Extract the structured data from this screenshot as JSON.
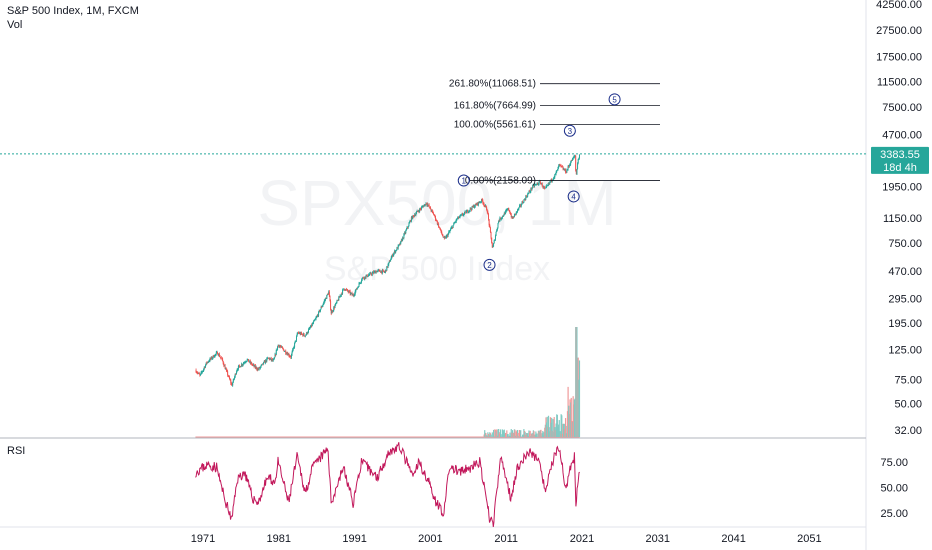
{
  "header": {
    "title": "S&P 500 Index, 1M, FXCM",
    "volume_label": "Vol",
    "rsi_label": "RSI"
  },
  "watermark": {
    "symbol": "SPX500, 1M",
    "name": "S&P 500 Index"
  },
  "price_badge": {
    "value": "3383.55",
    "countdown": "18d 4h",
    "color": "#26a69a"
  },
  "colors": {
    "up": "#26a69a",
    "down": "#ef5350",
    "rsi": "#c2185b",
    "wave": "#1c2f8a"
  },
  "chart_data": {
    "type": "candlestick",
    "title": "S&P 500 Index, 1M, FXCM",
    "y_scale": "log",
    "y_ticks": [
      "42500.00",
      "27500.00",
      "17500.00",
      "11500.00",
      "7500.00",
      "4700.00",
      "3383.55",
      "1950.00",
      "1150.00",
      "750.00",
      "470.00",
      "295.00",
      "195.00",
      "125.00",
      "75.00",
      "50.00",
      "32.00"
    ],
    "x_ticks": [
      "1971",
      "1981",
      "1991",
      "2001",
      "2011",
      "2021",
      "2031",
      "2041",
      "2051"
    ],
    "price_points": [
      [
        1970.0,
        88
      ],
      [
        1970.6,
        80
      ],
      [
        1971.5,
        100
      ],
      [
        1972.9,
        118
      ],
      [
        1973.5,
        105
      ],
      [
        1974.8,
        68
      ],
      [
        1975.5,
        90
      ],
      [
        1976.8,
        105
      ],
      [
        1977.8,
        93
      ],
      [
        1978.3,
        89
      ],
      [
        1979.6,
        108
      ],
      [
        1980.3,
        102
      ],
      [
        1980.9,
        135
      ],
      [
        1982.6,
        110
      ],
      [
        1983.5,
        165
      ],
      [
        1984.5,
        158
      ],
      [
        1985.9,
        210
      ],
      [
        1987.6,
        330
      ],
      [
        1987.9,
        230
      ],
      [
        1989.6,
        350
      ],
      [
        1990.8,
        310
      ],
      [
        1992.0,
        415
      ],
      [
        1994.0,
        470
      ],
      [
        1995.0,
        460
      ],
      [
        1996.0,
        615
      ],
      [
        1997.0,
        740
      ],
      [
        1998.5,
        1140
      ],
      [
        1999.0,
        1230
      ],
      [
        2000.5,
        1480
      ],
      [
        2001.5,
        1200
      ],
      [
        2002.8,
        800
      ],
      [
        2003.2,
        850
      ],
      [
        2004.5,
        1130
      ],
      [
        2006.0,
        1300
      ],
      [
        2007.8,
        1550
      ],
      [
        2008.5,
        1300
      ],
      [
        2009.2,
        680
      ],
      [
        2010.0,
        1100
      ],
      [
        2011.3,
        1340
      ],
      [
        2011.8,
        1130
      ],
      [
        2013.0,
        1450
      ],
      [
        2014.5,
        1950
      ],
      [
        2015.5,
        2100
      ],
      [
        2016.1,
        1850
      ],
      [
        2017.5,
        2400
      ],
      [
        2018.0,
        2800
      ],
      [
        2018.9,
        2500
      ],
      [
        2019.5,
        2950
      ],
      [
        2020.1,
        3300
      ],
      [
        2020.2,
        2250
      ],
      [
        2020.4,
        2900
      ],
      [
        2020.7,
        3383
      ]
    ],
    "fibonacci": [
      {
        "label": "261.80%(11068.51)",
        "value": 11068.51
      },
      {
        "label": "161.80%(7664.99)",
        "value": 7664.99
      },
      {
        "label": "100.00%(5561.61)",
        "value": 5561.61
      },
      {
        "label": "0.00%(2158.09)",
        "value": 2158.09
      }
    ],
    "waves": [
      {
        "label": "1",
        "x": 2005.4,
        "y": 2158
      },
      {
        "label": "2",
        "x": 2008.8,
        "y": 520
      },
      {
        "label": "3",
        "x": 2019.4,
        "y": 5000
      },
      {
        "label": "4",
        "x": 2019.9,
        "y": 1650
      },
      {
        "label": "5",
        "x": 2025.3,
        "y": 8500
      }
    ],
    "rsi": {
      "ticks": [
        "75.00",
        "50.00",
        "25.00"
      ],
      "points": [
        [
          1970.0,
          65
        ],
        [
          1971.5,
          72
        ],
        [
          1972.8,
          70
        ],
        [
          1973.8,
          40
        ],
        [
          1974.8,
          18
        ],
        [
          1975.5,
          58
        ],
        [
          1976.5,
          65
        ],
        [
          1977.5,
          40
        ],
        [
          1978.3,
          35
        ],
        [
          1979.5,
          60
        ],
        [
          1980.5,
          55
        ],
        [
          1980.9,
          75
        ],
        [
          1982.3,
          35
        ],
        [
          1983.4,
          80
        ],
        [
          1984.5,
          45
        ],
        [
          1985.5,
          70
        ],
        [
          1987.5,
          88
        ],
        [
          1987.9,
          35
        ],
        [
          1989.5,
          70
        ],
        [
          1990.8,
          35
        ],
        [
          1991.9,
          75
        ],
        [
          1994.0,
          60
        ],
        [
          1995.5,
          85
        ],
        [
          1997.0,
          90
        ],
        [
          1998.7,
          60
        ],
        [
          1999.5,
          75
        ],
        [
          2000.8,
          55
        ],
        [
          2001.8,
          35
        ],
        [
          2002.8,
          25
        ],
        [
          2003.5,
          70
        ],
        [
          2005.0,
          65
        ],
        [
          2006.5,
          70
        ],
        [
          2007.5,
          75
        ],
        [
          2008.8,
          20
        ],
        [
          2009.3,
          15
        ],
        [
          2010.3,
          80
        ],
        [
          2011.6,
          40
        ],
        [
          2012.5,
          70
        ],
        [
          2014.0,
          85
        ],
        [
          2015.5,
          75
        ],
        [
          2016.1,
          45
        ],
        [
          2017.5,
          85
        ],
        [
          2018.1,
          88
        ],
        [
          2018.9,
          45
        ],
        [
          2019.5,
          70
        ],
        [
          2020.0,
          80
        ],
        [
          2020.2,
          30
        ],
        [
          2020.5,
          60
        ],
        [
          2020.7,
          65
        ]
      ]
    }
  }
}
